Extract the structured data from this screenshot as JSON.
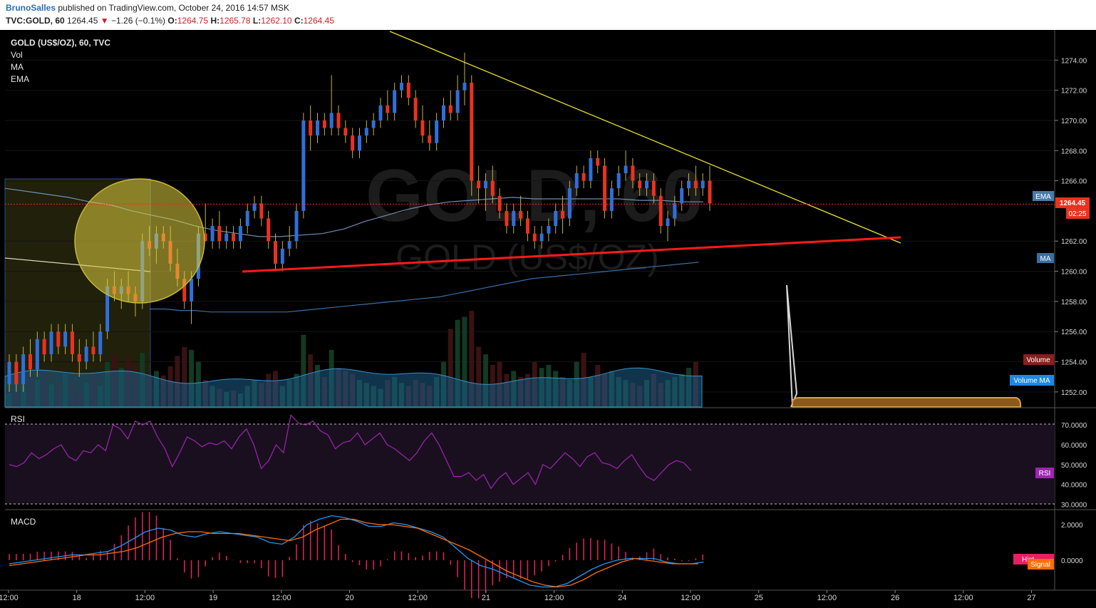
{
  "header": {
    "user": "BrunoSalles",
    "published": " published on TradingView.com, October 24, 2016 14:57 MSK",
    "symbol": "TVC:GOLD, 60",
    "last": "1264.45",
    "change": "−1.26 (−0.1%)",
    "o_label": "O:",
    "o_value": "1264.75",
    "h_label": "H:",
    "h_value": "1265.78",
    "l_label": "L:",
    "l_value": "1262.10",
    "c_label": "C:",
    "c_value": "1264.45"
  },
  "legend": {
    "title": "GOLD (US$/OZ), 60, TVC",
    "items": [
      "Vol",
      "MA",
      "EMA"
    ]
  },
  "watermark": {
    "line1": "GOLD, 60",
    "line2": "GOLD (US$/OZ)"
  },
  "colors": {
    "background": "#000000",
    "up": "#2f6fd8",
    "down": "#e8331f",
    "wick": "#c8b23a",
    "ma": "#3a6ea5",
    "ema": "#6d8fb0",
    "rsi": "#9c27b0",
    "macd": "#2196f3",
    "signal": "#ff6d00",
    "hist": "#e91e63",
    "trendline": "#e8e02a",
    "support": "#ff1a1a",
    "highlight": "#e0d040"
  },
  "price_axis": {
    "ticks": [
      "1274.00",
      "1272.00",
      "1270.00",
      "1268.00",
      "1266.00",
      "1262.00",
      "1260.00",
      "1258.00",
      "1256.00",
      "1254.00",
      "1252.00"
    ],
    "last_price": "1264.45",
    "countdown": "02:25"
  },
  "badges": {
    "ema": "EMA",
    "ma": "MA",
    "volume": "Volume",
    "volume_ma": "Volume MA",
    "rsi": "RSI",
    "hist": "Hist",
    "signal": "Signal"
  },
  "rsi_panel": {
    "label": "RSI",
    "ticks": [
      "70.0000",
      "60.0000",
      "50.0000",
      "40.0000",
      "30.0000"
    ]
  },
  "macd_panel": {
    "label": "MACD",
    "ticks": [
      "2.0000",
      "0.0000"
    ]
  },
  "time_axis": {
    "labels": [
      "12:00",
      "18",
      "12:00",
      "19",
      "12:00",
      "20",
      "12:00",
      "21",
      "12:00",
      "24",
      "12:00",
      "25",
      "12:00",
      "26",
      "12:00",
      "27"
    ]
  },
  "chart_data": {
    "type": "candlestick",
    "title": "GOLD (US$/OZ), 60, TVC",
    "interval": "60",
    "candles": [
      [
        1252.5,
        1254.5,
        1252.0,
        1254.0
      ],
      [
        1254.0,
        1254.5,
        1252.0,
        1252.5
      ],
      [
        1252.5,
        1255.0,
        1252.0,
        1254.5
      ],
      [
        1254.5,
        1255.5,
        1253.0,
        1253.5
      ],
      [
        1253.5,
        1256.0,
        1253.0,
        1255.5
      ],
      [
        1255.5,
        1256.0,
        1254.0,
        1254.5
      ],
      [
        1254.5,
        1256.5,
        1254.0,
        1256.0
      ],
      [
        1256.0,
        1256.5,
        1254.5,
        1255.0
      ],
      [
        1255.0,
        1256.5,
        1254.5,
        1256.0
      ],
      [
        1256.0,
        1256.5,
        1254.0,
        1254.5
      ],
      [
        1254.5,
        1255.5,
        1253.0,
        1254.0
      ],
      [
        1254.0,
        1255.5,
        1253.5,
        1255.0
      ],
      [
        1255.0,
        1256.0,
        1254.0,
        1254.5
      ],
      [
        1254.5,
        1256.5,
        1254.0,
        1256.0
      ],
      [
        1256.0,
        1259.5,
        1255.5,
        1259.0
      ],
      [
        1259.0,
        1260.0,
        1258.0,
        1258.5
      ],
      [
        1258.5,
        1259.5,
        1257.5,
        1259.0
      ],
      [
        1259.0,
        1260.0,
        1258.0,
        1258.5
      ],
      [
        1258.5,
        1259.0,
        1257.0,
        1258.0
      ],
      [
        1258.0,
        1262.5,
        1257.5,
        1262.0
      ],
      [
        1262.0,
        1263.0,
        1261.0,
        1261.5
      ],
      [
        1261.5,
        1263.0,
        1260.5,
        1262.5
      ],
      [
        1262.5,
        1263.0,
        1261.5,
        1262.0
      ],
      [
        1262.0,
        1263.0,
        1260.0,
        1260.5
      ],
      [
        1260.5,
        1261.5,
        1259.0,
        1259.5
      ],
      [
        1259.5,
        1260.0,
        1257.5,
        1258.0
      ],
      [
        1258.0,
        1260.0,
        1256.5,
        1259.5
      ],
      [
        1259.5,
        1263.0,
        1259.0,
        1262.5
      ],
      [
        1262.5,
        1264.5,
        1262.0,
        1262.0
      ],
      [
        1262.0,
        1263.5,
        1261.5,
        1263.0
      ],
      [
        1263.0,
        1264.0,
        1261.5,
        1262.0
      ],
      [
        1262.0,
        1263.0,
        1261.5,
        1262.5
      ],
      [
        1262.5,
        1263.0,
        1261.5,
        1262.0
      ],
      [
        1262.0,
        1263.5,
        1261.5,
        1263.0
      ],
      [
        1263.0,
        1264.5,
        1262.5,
        1264.0
      ],
      [
        1264.0,
        1265.0,
        1263.5,
        1264.5
      ],
      [
        1264.5,
        1265.0,
        1263.0,
        1263.5
      ],
      [
        1263.5,
        1264.0,
        1261.5,
        1262.0
      ],
      [
        1262.0,
        1262.5,
        1260.0,
        1260.5
      ],
      [
        1260.5,
        1262.0,
        1260.0,
        1261.5
      ],
      [
        1261.5,
        1263.0,
        1261.0,
        1262.0
      ],
      [
        1262.0,
        1264.5,
        1261.5,
        1264.0
      ],
      [
        1264.0,
        1270.5,
        1263.5,
        1270.0
      ],
      [
        1270.0,
        1271.0,
        1268.0,
        1269.0
      ],
      [
        1269.0,
        1270.5,
        1268.5,
        1270.0
      ],
      [
        1270.0,
        1270.5,
        1269.0,
        1269.5
      ],
      [
        1269.5,
        1273.0,
        1269.0,
        1270.5
      ],
      [
        1270.5,
        1271.0,
        1269.0,
        1269.5
      ],
      [
        1269.5,
        1270.0,
        1268.5,
        1269.0
      ],
      [
        1269.0,
        1269.5,
        1267.5,
        1268.0
      ],
      [
        1268.0,
        1269.5,
        1267.5,
        1269.0
      ],
      [
        1269.0,
        1270.0,
        1268.5,
        1269.5
      ],
      [
        1269.5,
        1270.5,
        1269.0,
        1270.0
      ],
      [
        1270.0,
        1271.5,
        1269.5,
        1271.0
      ],
      [
        1271.0,
        1272.0,
        1270.0,
        1270.5
      ],
      [
        1270.5,
        1272.5,
        1270.0,
        1272.0
      ],
      [
        1272.0,
        1273.0,
        1271.5,
        1272.5
      ],
      [
        1272.5,
        1273.0,
        1271.0,
        1271.5
      ],
      [
        1271.5,
        1272.0,
        1269.5,
        1270.0
      ],
      [
        1270.0,
        1271.0,
        1268.5,
        1269.0
      ],
      [
        1269.0,
        1270.0,
        1268.0,
        1268.5
      ],
      [
        1268.5,
        1270.5,
        1268.0,
        1270.0
      ],
      [
        1270.0,
        1271.5,
        1269.5,
        1271.0
      ],
      [
        1271.0,
        1272.0,
        1270.0,
        1270.5
      ],
      [
        1270.5,
        1273.0,
        1270.0,
        1272.0
      ],
      [
        1272.0,
        1274.5,
        1271.0,
        1272.5
      ],
      [
        1272.5,
        1273.0,
        1265.0,
        1266.0
      ],
      [
        1266.0,
        1267.0,
        1264.5,
        1265.5
      ],
      [
        1265.5,
        1266.5,
        1264.0,
        1266.0
      ],
      [
        1266.0,
        1267.0,
        1264.5,
        1265.0
      ],
      [
        1265.0,
        1265.5,
        1263.5,
        1264.0
      ],
      [
        1264.0,
        1264.5,
        1262.5,
        1263.0
      ],
      [
        1263.0,
        1264.5,
        1262.5,
        1264.0
      ],
      [
        1264.0,
        1265.0,
        1263.0,
        1263.5
      ],
      [
        1263.5,
        1264.0,
        1262.0,
        1262.5
      ],
      [
        1262.5,
        1263.0,
        1261.5,
        1262.0
      ],
      [
        1262.0,
        1263.0,
        1261.5,
        1262.5
      ],
      [
        1262.5,
        1263.5,
        1262.0,
        1263.0
      ],
      [
        1263.0,
        1264.5,
        1262.5,
        1264.0
      ],
      [
        1264.0,
        1265.0,
        1262.5,
        1263.5
      ],
      [
        1263.5,
        1266.0,
        1263.0,
        1265.5
      ],
      [
        1265.5,
        1267.0,
        1265.0,
        1266.5
      ],
      [
        1266.5,
        1267.0,
        1265.5,
        1266.0
      ],
      [
        1266.0,
        1268.0,
        1265.5,
        1267.5
      ],
      [
        1267.5,
        1268.0,
        1266.5,
        1267.0
      ],
      [
        1267.0,
        1267.5,
        1263.5,
        1264.0
      ],
      [
        1264.0,
        1266.0,
        1263.5,
        1265.5
      ],
      [
        1265.5,
        1267.0,
        1265.0,
        1266.5
      ],
      [
        1266.5,
        1268.0,
        1266.0,
        1267.0
      ],
      [
        1267.0,
        1267.5,
        1265.5,
        1266.0
      ],
      [
        1266.0,
        1266.5,
        1265.0,
        1265.5
      ],
      [
        1265.5,
        1266.5,
        1265.0,
        1266.0
      ],
      [
        1266.0,
        1266.5,
        1264.5,
        1265.0
      ],
      [
        1265.0,
        1265.5,
        1262.5,
        1263.0
      ],
      [
        1263.0,
        1264.0,
        1262.0,
        1263.5
      ],
      [
        1263.5,
        1265.0,
        1263.0,
        1264.5
      ],
      [
        1264.5,
        1266.0,
        1264.0,
        1265.5
      ],
      [
        1265.5,
        1266.5,
        1265.0,
        1266.0
      ],
      [
        1266.0,
        1267.0,
        1265.0,
        1265.5
      ],
      [
        1265.5,
        1266.5,
        1265.0,
        1266.0
      ],
      [
        1266.0,
        1267.0,
        1264.0,
        1264.5
      ]
    ],
    "ma": [
      1257.5,
      1257.5,
      1257.4,
      1257.4,
      1257.3,
      1257.3,
      1257.3,
      1257.3,
      1257.3,
      1257.3,
      1257.4,
      1257.5,
      1257.6,
      1257.7,
      1257.8,
      1257.9,
      1258.0,
      1258.1,
      1258.2,
      1258.3,
      1258.5,
      1258.7,
      1258.9,
      1259.1,
      1259.3,
      1259.5,
      1259.6,
      1259.7,
      1259.8,
      1259.9,
      1260.0,
      1260.1,
      1260.2,
      1260.3,
      1260.4,
      1260.5,
      1260.6
    ],
    "ema": [
      1265.5,
      1265.3,
      1265.1,
      1264.9,
      1264.6,
      1264.4,
      1264.0,
      1263.7,
      1263.4,
      1263.0,
      1262.7,
      1262.5,
      1262.3,
      1262.3,
      1262.4,
      1262.5,
      1262.8,
      1263.3,
      1263.7,
      1264.1,
      1264.4,
      1264.6,
      1264.7,
      1264.8,
      1264.9,
      1264.8,
      1264.8,
      1264.8,
      1264.8,
      1264.8,
      1264.7,
      1264.7,
      1264.6,
      1264.6
    ],
    "volume": [
      9,
      12,
      14,
      22,
      18,
      25,
      15,
      17,
      22,
      18,
      12,
      16,
      22,
      14,
      30,
      34,
      26,
      33,
      28,
      36,
      20,
      24,
      21,
      27,
      34,
      40,
      38,
      30,
      18,
      14,
      12,
      10,
      11,
      9,
      14,
      18,
      16,
      22,
      24,
      14,
      18,
      22,
      48,
      35,
      28,
      20,
      38,
      26,
      24,
      22,
      18,
      16,
      14,
      12,
      18,
      20,
      16,
      14,
      18,
      16,
      14,
      20,
      30,
      52,
      58,
      60,
      64,
      40,
      35,
      28,
      30,
      22,
      24,
      20,
      22,
      30,
      26,
      28,
      24,
      20,
      18,
      30,
      36,
      20,
      28,
      22,
      24,
      20,
      18,
      16,
      14,
      18,
      22,
      16,
      18,
      20,
      22,
      26,
      30
    ],
    "rsi": [
      50,
      49,
      51,
      56,
      53,
      55,
      58,
      60,
      54,
      52,
      57,
      56,
      60,
      57,
      70,
      68,
      63,
      72,
      70,
      72,
      64,
      58,
      49,
      56,
      64,
      62,
      59,
      61,
      60,
      62,
      58,
      64,
      68,
      60,
      48,
      52,
      60,
      56,
      75,
      71,
      70,
      72,
      67,
      65,
      58,
      61,
      62,
      66,
      60,
      63,
      66,
      60,
      58,
      55,
      52,
      56,
      62,
      66,
      60,
      52,
      44,
      44,
      46,
      42,
      45,
      38,
      43,
      46,
      40,
      43,
      46,
      40,
      50,
      48,
      52,
      56,
      53,
      49,
      54,
      56,
      51,
      50,
      48,
      52,
      55,
      49,
      44,
      42,
      46,
      50,
      52,
      51,
      47
    ],
    "macd": [
      -0.2,
      -0.1,
      0.0,
      0.1,
      0.2,
      0.3,
      0.3,
      0.4,
      0.5,
      0.8,
      1.2,
      1.6,
      1.8,
      1.7,
      1.4,
      1.3,
      1.5,
      1.6,
      1.5,
      1.4,
      1.3,
      1.0,
      0.9,
      1.3,
      2.0,
      2.3,
      2.5,
      2.4,
      2.2,
      1.9,
      1.9,
      2.1,
      2.0,
      1.8,
      1.6,
      1.3,
      0.7,
      0.1,
      -0.3,
      -0.5,
      -0.8,
      -1.1,
      -1.4,
      -1.5,
      -1.5,
      -1.3,
      -0.9,
      -0.5,
      -0.2,
      0.0,
      0.1,
      0.1,
      0.1,
      -0.1,
      -0.2,
      -0.2,
      -0.1
    ],
    "signal": [
      -0.3,
      -0.2,
      -0.1,
      0.0,
      0.1,
      0.2,
      0.3,
      0.3,
      0.4,
      0.5,
      0.7,
      1.0,
      1.3,
      1.5,
      1.6,
      1.6,
      1.5,
      1.5,
      1.5,
      1.4,
      1.3,
      1.2,
      1.1,
      1.3,
      1.7,
      2.0,
      2.3,
      2.3,
      2.1,
      2.0,
      2.0,
      1.9,
      1.8,
      1.5,
      1.2,
      0.9,
      0.6,
      0.2,
      -0.2,
      -0.6,
      -0.9,
      -1.2,
      -1.4,
      -1.5,
      -1.4,
      -1.1,
      -0.7,
      -0.4,
      -0.1,
      0.1,
      0.0,
      -0.1,
      -0.2,
      -0.2,
      -0.2
    ],
    "price_range": [
      1251,
      1276
    ],
    "rsi_range": [
      28,
      78
    ],
    "macd_range": [
      -1.6,
      2.8
    ],
    "annotations": {
      "descending_trendline": [
        [
          1276.3,
          1261.7
        ]
      ],
      "support_line": [
        [
          1259.7,
          1262.1
        ]
      ],
      "last_price_line": 1264.45
    }
  }
}
